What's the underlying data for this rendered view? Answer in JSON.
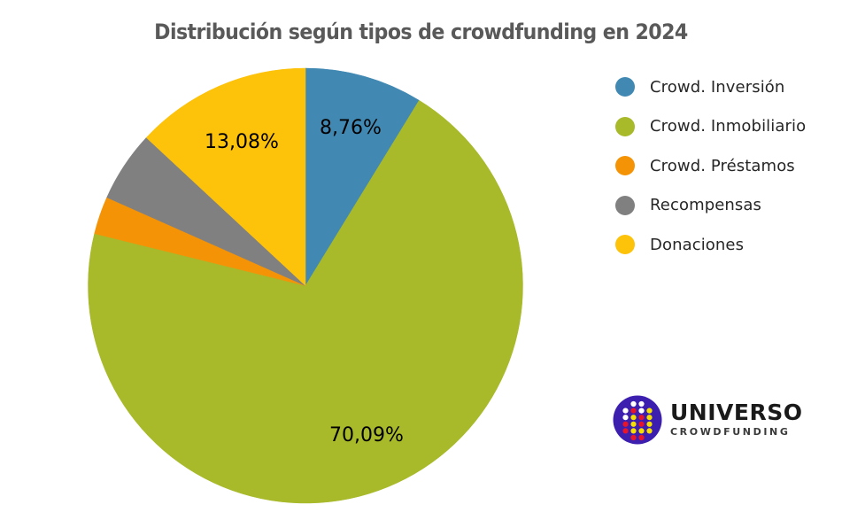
{
  "chart_data": {
    "type": "pie",
    "title": "Distribución según tipos de crowdfunding en 2024",
    "start_angle_deg": 0,
    "direction": "clockwise",
    "legend_position": "right",
    "slices": [
      {
        "name": "Crowd. Inversión",
        "value": 8.76,
        "label": "8,76%",
        "color": "#4189B3",
        "labeled": true
      },
      {
        "name": "Crowd. Inmobiliario",
        "value": 70.09,
        "label": "70,09%",
        "color": "#A8B929",
        "labeled": true
      },
      {
        "name": "Crowd. Préstamos",
        "value": 2.8,
        "label": "",
        "color": "#F59306",
        "labeled": false
      },
      {
        "name": "Recompensas",
        "value": 5.27,
        "label": "",
        "color": "#808080",
        "labeled": false
      },
      {
        "name": "Donaciones",
        "value": 13.08,
        "label": "13,08%",
        "color": "#FDC20A",
        "labeled": true
      }
    ],
    "categories": [
      "Crowd. Inversión",
      "Crowd. Inmobiliario",
      "Crowd. Préstamos",
      "Recompensas",
      "Donaciones"
    ],
    "values": [
      8.76,
      70.09,
      2.8,
      5.27,
      13.08
    ]
  },
  "title": "Distribución según tipos de crowdfunding en 2024",
  "legend": {
    "items": [
      {
        "label": "Crowd. Inversión",
        "color": "#4189B3"
      },
      {
        "label": "Crowd. Inmobiliario",
        "color": "#A8B929"
      },
      {
        "label": "Crowd. Préstamos",
        "color": "#F59306"
      },
      {
        "label": "Recompensas",
        "color": "#808080"
      },
      {
        "label": "Donaciones",
        "color": "#FDC20A"
      }
    ]
  },
  "labels": {
    "inversion": "8,76%",
    "inmobiliario": "70,09%",
    "donaciones": "13,08%"
  },
  "logo": {
    "word": "UNIVERSO",
    "sub": "CROWDFUNDING",
    "circle_color": "#3D1FB0",
    "dot_colors": {
      "white": "#FFFFFF",
      "red": "#E8142A",
      "yellow": "#F5E000"
    }
  }
}
